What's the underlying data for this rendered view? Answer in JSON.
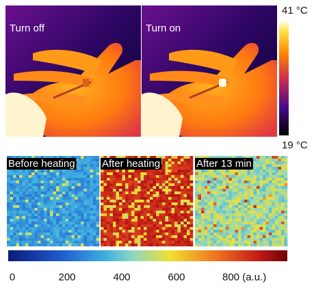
{
  "thermal": {
    "panels": [
      "Turn off",
      "Turn on"
    ],
    "colorbar": {
      "max_label": "41 °C",
      "min_label": "19 °C"
    }
  },
  "heatmap": {
    "panels": [
      "Before heating",
      "After heating",
      "After 13 min"
    ],
    "colorbar": {
      "xlim": [
        0,
        1000
      ],
      "ticks": [
        0,
        200,
        400,
        600,
        {
          "value": 800,
          "label": "800 (a.u.)"
        }
      ]
    }
  }
}
